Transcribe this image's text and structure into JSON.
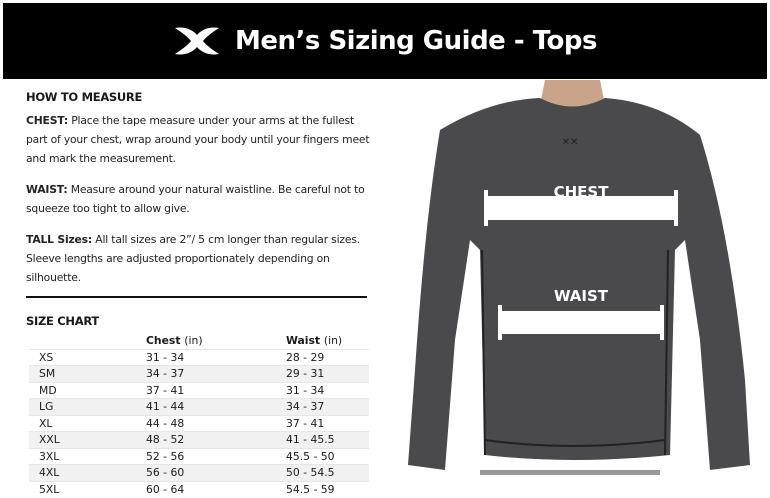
{
  "header": {
    "title": "Men’s Sizing Guide - Tops",
    "logo": "under-armour-logo",
    "background": "#000000"
  },
  "how_to_measure": {
    "heading": "HOW TO MEASURE",
    "chest_label": "CHEST:",
    "chest_text": " Place the tape measure under your arms at the fullest part of your chest, wrap around your body until your fingers meet and mark the measurement.",
    "waist_label": "WAIST:",
    "waist_text": " Measure around your natural waistline. Be careful not to squeeze too tight to allow give.",
    "tall_label": "TALL Sizes:",
    "tall_text": " All tall sizes are 2”/ 5 cm longer than regular sizes. Sleeve lengths are adjusted proportionately depending on silhouette."
  },
  "size_chart": {
    "heading": "SIZE CHART",
    "columns": [
      {
        "label": "Chest",
        "unit": "(in)"
      },
      {
        "label": "Waist",
        "unit": "(in)"
      }
    ],
    "rows": [
      {
        "size": "XS",
        "chest": "31 - 34",
        "waist": "28 - 29"
      },
      {
        "size": "SM",
        "chest": "34 - 37",
        "waist": "29 - 31"
      },
      {
        "size": "MD",
        "chest": "37 - 41",
        "waist": "31 - 34"
      },
      {
        "size": "LG",
        "chest": "41 - 44",
        "waist": "34 - 37"
      },
      {
        "size": "XL",
        "chest": "44 - 48",
        "waist": "37 - 41"
      },
      {
        "size": "XXL",
        "chest": "48 - 52",
        "waist": "41 - 45.5"
      },
      {
        "size": "3XL",
        "chest": "52 - 56",
        "waist": "45.5 - 50"
      },
      {
        "size": "4XL",
        "chest": "56 - 60",
        "waist": "50 - 54.5"
      },
      {
        "size": "5XL",
        "chest": "60 - 64",
        "waist": "54.5 - 59"
      }
    ]
  },
  "photo": {
    "chest_label": "CHEST",
    "waist_label": "WAIST",
    "shirt_color": "#4a4a4c"
  }
}
